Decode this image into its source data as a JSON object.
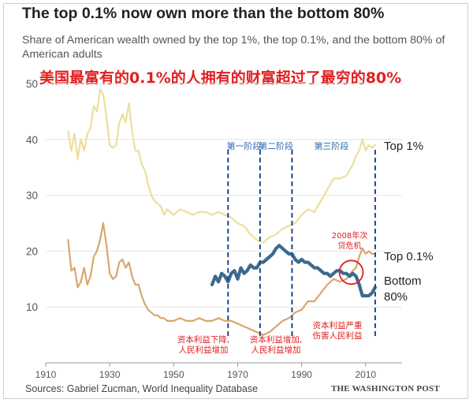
{
  "title": "The top 0.1% now own more than the bottom 80%",
  "subtitle": "Share of American wealth owned by the top 1%, the top 0.1%, and the bottom 80% of American adults",
  "cn_headline": "美国最富有的0.1%的人拥有的财富超过了最穷的80%",
  "source": "Sources: Gabriel Zucman, World Inequality Database",
  "publisher": "THE WASHINGTON POST",
  "colors": {
    "top1": "#ecdf9c",
    "top01": "#d7a770",
    "bottom80": "#3d6a8c",
    "annotation_red": "#e02020",
    "phase_line": "#1f4a86",
    "grid": "#e6e6e6"
  },
  "annotations": {
    "phases": [
      {
        "label": "第一阶段",
        "year": 1967
      },
      {
        "label": "第二阶段",
        "year": 1977
      },
      {
        "label": "第三阶段",
        "year": 1987
      },
      {
        "label": "",
        "year": 2013
      }
    ],
    "crisis_label_line1": "2008年次",
    "crisis_label_line2": "贷危机",
    "note1_line1": "资本利益下降,",
    "note1_line2": "人民利益增加",
    "note2_line1": "资本利益增加,",
    "note2_line2": "人民利益增加",
    "note3_line1": "资本利益严重",
    "note3_line2": "伤害人民利益"
  },
  "chart_data": {
    "type": "line",
    "title": "The top 0.1% now own more than the bottom 80%",
    "subtitle": "Share of American wealth owned by the top 1%, the top 0.1%, and the bottom 80% of American adults",
    "xlabel": "",
    "ylabel": "",
    "xlim": [
      1910,
      2014
    ],
    "ylim": [
      0,
      50
    ],
    "xticks": [
      1910,
      1930,
      1950,
      1970,
      1990,
      2010
    ],
    "yticks": [
      10,
      20,
      30,
      40,
      50
    ],
    "grid": true,
    "series": [
      {
        "name": "Top 1%",
        "x": [
          1917,
          1918,
          1919,
          1920,
          1921,
          1922,
          1923,
          1924,
          1925,
          1926,
          1927,
          1928,
          1929,
          1930,
          1931,
          1932,
          1933,
          1934,
          1935,
          1936,
          1937,
          1938,
          1939,
          1940,
          1941,
          1942,
          1943,
          1944,
          1945,
          1946,
          1947,
          1948,
          1950,
          1952,
          1954,
          1956,
          1958,
          1960,
          1962,
          1964,
          1966,
          1968,
          1970,
          1972,
          1974,
          1976,
          1978,
          1980,
          1982,
          1984,
          1986,
          1988,
          1990,
          1992,
          1994,
          1996,
          1998,
          2000,
          2002,
          2004,
          2006,
          2007,
          2008,
          2009,
          2010,
          2011,
          2012,
          2013
        ],
        "values": [
          41.5,
          38,
          41,
          36.5,
          40,
          38,
          41,
          42,
          46,
          45,
          49,
          48,
          44,
          39,
          38.5,
          39,
          43,
          44.5,
          43,
          46.5,
          41.5,
          38,
          38,
          35.5,
          34.5,
          32,
          30,
          29,
          28.5,
          28,
          26.5,
          27.5,
          26.5,
          27.5,
          27,
          26.5,
          27,
          27,
          26.5,
          27,
          26.5,
          26,
          25,
          24.5,
          23,
          22,
          21.5,
          22.5,
          23,
          24,
          24.5,
          25,
          26.5,
          27.5,
          27,
          29,
          31,
          33,
          33,
          33.5,
          35.5,
          37,
          38,
          40,
          38,
          39,
          38.5,
          39
        ]
      },
      {
        "name": "Top 0.1%",
        "x": [
          1917,
          1918,
          1919,
          1920,
          1921,
          1922,
          1923,
          1924,
          1925,
          1926,
          1927,
          1928,
          1929,
          1930,
          1931,
          1932,
          1933,
          1934,
          1935,
          1936,
          1937,
          1938,
          1939,
          1940,
          1941,
          1942,
          1943,
          1944,
          1945,
          1946,
          1947,
          1948,
          1950,
          1952,
          1954,
          1956,
          1958,
          1960,
          1962,
          1964,
          1966,
          1968,
          1970,
          1972,
          1974,
          1976,
          1978,
          1980,
          1982,
          1984,
          1986,
          1988,
          1990,
          1992,
          1994,
          1996,
          1998,
          2000,
          2002,
          2004,
          2006,
          2007,
          2008,
          2009,
          2010,
          2011,
          2012,
          2013
        ],
        "values": [
          22,
          16.5,
          17,
          13.5,
          14.5,
          17,
          14,
          15.5,
          19,
          20,
          22,
          25,
          21,
          16,
          15,
          15.5,
          18,
          18.5,
          17,
          18,
          15.5,
          14,
          14,
          12,
          10.5,
          9.5,
          9,
          8.5,
          8.5,
          8,
          8,
          7.5,
          7.5,
          8,
          7.5,
          7.5,
          8,
          7.5,
          7.5,
          8,
          7.5,
          7.5,
          7,
          6.5,
          6,
          5.5,
          5,
          5.5,
          6.5,
          7.5,
          8,
          9,
          9.5,
          11,
          11,
          12.5,
          14,
          15,
          14.5,
          15,
          16.5,
          17,
          19,
          20.5,
          19.5,
          20,
          19.5,
          19.5
        ]
      },
      {
        "name": "Bottom 80%",
        "x": [
          1962,
          1963,
          1964,
          1965,
          1966,
          1967,
          1968,
          1969,
          1970,
          1971,
          1972,
          1973,
          1974,
          1975,
          1976,
          1977,
          1978,
          1979,
          1980,
          1981,
          1982,
          1983,
          1984,
          1985,
          1986,
          1987,
          1988,
          1989,
          1990,
          1991,
          1992,
          1993,
          1994,
          1995,
          1996,
          1997,
          1998,
          1999,
          2000,
          2001,
          2002,
          2003,
          2004,
          2005,
          2006,
          2007,
          2008,
          2009,
          2010,
          2011,
          2012,
          2013
        ],
        "values": [
          14,
          15.5,
          14.5,
          16,
          15.5,
          14.5,
          16,
          16.5,
          15,
          17,
          16,
          16.5,
          17.5,
          17,
          17,
          18,
          18,
          18.5,
          19,
          19.5,
          20.5,
          21,
          20.5,
          20,
          19.5,
          19.5,
          18.5,
          18,
          18.5,
          18,
          18,
          17.5,
          17,
          17,
          16.5,
          16,
          16,
          15.5,
          16,
          16.5,
          16.5,
          16,
          16,
          15.5,
          16,
          15.5,
          14,
          12,
          12,
          12,
          12.5,
          13.5
        ]
      }
    ]
  }
}
